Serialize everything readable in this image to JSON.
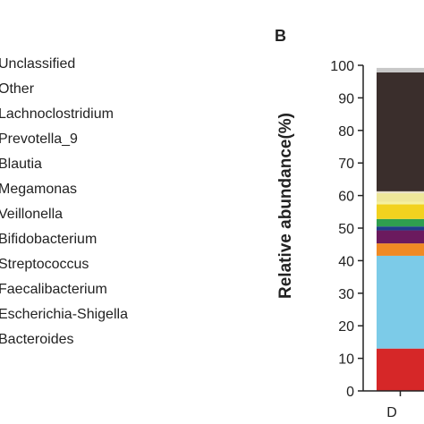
{
  "chart_data": {
    "type": "bar",
    "stacked": true,
    "panel_label": "B",
    "ylabel": "Relative abundance(%)",
    "ylim": [
      0,
      100
    ],
    "yticks": [
      0,
      10,
      20,
      30,
      40,
      50,
      60,
      70,
      80,
      90,
      100
    ],
    "categories": [
      "D"
    ],
    "legend": {
      "placement": "left",
      "entries": [
        "Unclassified",
        "Other",
        "Lachnoclostridium",
        "Prevotella_9",
        "Blautia",
        "Megamonas",
        "Veillonella",
        "Bifidobacterium",
        "Streptococcus",
        "Faecalibacterium",
        "Escherichia-Shigella",
        "Bacteroides"
      ]
    },
    "series": [
      {
        "name": "Bacteroides",
        "color": "#d62728",
        "values": [
          13
        ]
      },
      {
        "name": "Escherichia-Shigella",
        "color": "#7ccbe8",
        "values": [
          28.5
        ]
      },
      {
        "name": "Faecalibacterium",
        "color": "#f08a24",
        "values": [
          3.8
        ]
      },
      {
        "name": "Streptococcus",
        "color": "#6b1a5e",
        "values": [
          4
        ]
      },
      {
        "name": "Bifidobacterium",
        "color": "#1f3d8a",
        "values": [
          1.2
        ]
      },
      {
        "name": "Veillonella",
        "color": "#2f9e4f",
        "values": [
          2.3
        ]
      },
      {
        "name": "Megamonas",
        "color": "#f2d21f",
        "values": [
          4.5
        ]
      },
      {
        "name": "Blautia",
        "color": "#f5f0a0",
        "values": [
          0.8
        ]
      },
      {
        "name": "Prevotella_9",
        "color": "#eee79a",
        "values": [
          2.6
        ]
      },
      {
        "name": "Lachnoclostridium",
        "color": "#e8e0c8",
        "values": [
          0.6
        ]
      },
      {
        "name": "Other",
        "color": "#3a2e2c",
        "values": [
          36.5
        ]
      },
      {
        "name": "Unclassified",
        "color": "#c8c8c8",
        "values": [
          1.4
        ]
      }
    ]
  }
}
